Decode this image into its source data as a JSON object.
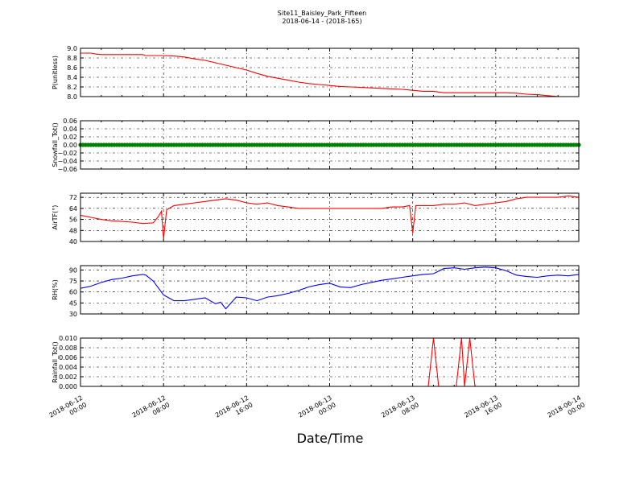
{
  "figure": {
    "title_line1": "Site11_Baisley_Park_Fifteen",
    "title_line2": "2018-06-14 - (2018-165)",
    "xlabel": "Date/Time"
  },
  "chart_data": [
    {
      "type": "line",
      "ylabel": "P(unitless)",
      "ylim": [
        8.0,
        9.0
      ],
      "yticks": [
        8.0,
        8.2,
        8.4,
        8.6,
        8.8,
        9.0
      ],
      "ytick_labels": [
        "8.0",
        "8.2",
        "8.4",
        "8.6",
        "8.8",
        "9.0"
      ],
      "grid": true,
      "series": [
        {
          "color": "#ff0000",
          "x": [
            0,
            0.5,
            1,
            1.5,
            2,
            3,
            4,
            5,
            6,
            6.2,
            7,
            8,
            9,
            10,
            11,
            12,
            13,
            14,
            15,
            16,
            17,
            18,
            19,
            20,
            21,
            22,
            23,
            24,
            25,
            26,
            27,
            28,
            29,
            30,
            31,
            32,
            33,
            34,
            35,
            36,
            37,
            38,
            39,
            40,
            41,
            42,
            43,
            44,
            45,
            46,
            47,
            48
          ],
          "y": [
            8.9,
            8.9,
            8.9,
            8.88,
            8.87,
            8.87,
            8.87,
            8.87,
            8.87,
            8.85,
            8.85,
            8.85,
            8.84,
            8.82,
            8.78,
            8.75,
            8.7,
            8.65,
            8.6,
            8.55,
            8.48,
            8.42,
            8.38,
            8.34,
            8.3,
            8.27,
            8.25,
            8.23,
            8.21,
            8.2,
            8.19,
            8.18,
            8.17,
            8.16,
            8.15,
            8.13,
            8.11,
            8.11,
            8.08,
            8.08,
            8.08,
            8.08,
            8.08,
            8.08,
            8.08,
            8.07,
            8.05,
            8.04,
            8.02,
            8.0,
            8.0,
            8.0
          ]
        }
      ]
    },
    {
      "type": "line",
      "ylabel": "Snowfall_Tot()",
      "ylim": [
        -0.06,
        0.06
      ],
      "yticks": [
        -0.06,
        -0.04,
        -0.02,
        0.0,
        0.02,
        0.04,
        0.06
      ],
      "ytick_labels": [
        "−0.06",
        "−0.04",
        "−0.02",
        "0.00",
        "0.02",
        "0.04",
        "0.06"
      ],
      "grid": true,
      "marker": "dot",
      "series": [
        {
          "color": "#008000",
          "x": [
            0,
            48
          ],
          "y": [
            0,
            0
          ]
        }
      ]
    },
    {
      "type": "line",
      "ylabel": "AirTF(°)",
      "ylim": [
        40,
        75
      ],
      "yticks": [
        40,
        48,
        56,
        64,
        72
      ],
      "ytick_labels": [
        "40",
        "48",
        "56",
        "64",
        "72"
      ],
      "grid": true,
      "series": [
        {
          "color": "#ff0000",
          "x": [
            0,
            1,
            2,
            3,
            4,
            5,
            6,
            7,
            7.5,
            7.8,
            8.0,
            8.3,
            9,
            10,
            11,
            12,
            13,
            14,
            15,
            16,
            17,
            18,
            19,
            20,
            21,
            22,
            23,
            24,
            25,
            26,
            27,
            28,
            29,
            30,
            31,
            31.7,
            32.0,
            32.3,
            33,
            34,
            35,
            36,
            37,
            38,
            39,
            40,
            41,
            42,
            43,
            44,
            45,
            46,
            47,
            48
          ],
          "y": [
            59,
            57.5,
            56,
            55,
            54.5,
            54,
            53,
            53.5,
            58,
            62,
            42,
            63,
            66,
            67,
            68,
            69,
            70,
            71,
            70,
            68,
            67,
            68,
            66,
            65,
            64,
            64,
            64,
            64,
            64,
            64,
            64,
            64,
            64,
            65,
            65,
            66,
            46,
            66,
            66,
            66,
            67,
            67,
            68,
            66,
            67,
            68,
            69,
            71,
            72,
            72,
            72,
            72,
            73,
            72
          ]
        }
      ]
    },
    {
      "type": "line",
      "ylabel": "RH(%)",
      "ylim": [
        30,
        96
      ],
      "yticks": [
        30,
        45,
        60,
        75,
        90
      ],
      "ytick_labels": [
        "30",
        "45",
        "60",
        "75",
        "90"
      ],
      "grid": true,
      "series": [
        {
          "color": "#0000ff",
          "x": [
            0,
            1,
            2,
            3,
            4,
            5,
            6,
            6.3,
            7,
            8,
            9,
            10,
            11,
            12,
            13,
            13.5,
            14,
            14.5,
            15,
            16,
            17,
            18,
            19,
            20,
            21,
            22,
            23,
            24,
            25,
            26,
            27,
            28,
            29,
            30,
            31,
            32,
            33,
            34,
            35,
            36,
            37,
            38,
            39,
            40,
            41,
            42,
            43,
            44,
            45,
            46,
            47,
            48
          ],
          "y": [
            65,
            68,
            73,
            77,
            79,
            82,
            84,
            83,
            75,
            56,
            48,
            48,
            50,
            52,
            44,
            46,
            37,
            45,
            53,
            52,
            48,
            53,
            55,
            58,
            62,
            67,
            70,
            72,
            67,
            66,
            70,
            73,
            76,
            78,
            80,
            82,
            84,
            85,
            92,
            93,
            91,
            93,
            94,
            93,
            89,
            83,
            81,
            80,
            82,
            83,
            82,
            84
          ]
        }
      ]
    },
    {
      "type": "line",
      "ylabel": "Rainfall_Tot()",
      "ylim": [
        0.0,
        0.01
      ],
      "yticks": [
        0.0,
        0.002,
        0.004,
        0.006,
        0.008,
        0.01
      ],
      "ytick_labels": [
        "0.000",
        "0.002",
        "0.004",
        "0.006",
        "0.008",
        "0.010"
      ],
      "grid": true,
      "series": [
        {
          "color": "#ff0000",
          "x": [
            0,
            33.5,
            34.0,
            34.5,
            36.2,
            36.7,
            37.0,
            37.5,
            38.0,
            48
          ],
          "y": [
            0,
            0,
            0.01,
            0,
            0,
            0.01,
            0,
            0.01,
            0,
            0
          ]
        }
      ]
    }
  ],
  "x_axis": {
    "unit": "hours from 2018-06-12 00:00",
    "range": [
      0,
      48
    ],
    "ticks": [
      {
        "value": 0,
        "line1": "2018-06-12",
        "line2": "00:00"
      },
      {
        "value": 8,
        "line1": "2018-06-12",
        "line2": "08:00"
      },
      {
        "value": 16,
        "line1": "2018-06-12",
        "line2": "16:00"
      },
      {
        "value": 24,
        "line1": "2018-06-13",
        "line2": "00:00"
      },
      {
        "value": 32,
        "line1": "2018-06-13",
        "line2": "08:00"
      },
      {
        "value": 40,
        "line1": "2018-06-13",
        "line2": "16:00"
      },
      {
        "value": 48,
        "line1": "2018-06-14",
        "line2": "00:00"
      }
    ]
  }
}
